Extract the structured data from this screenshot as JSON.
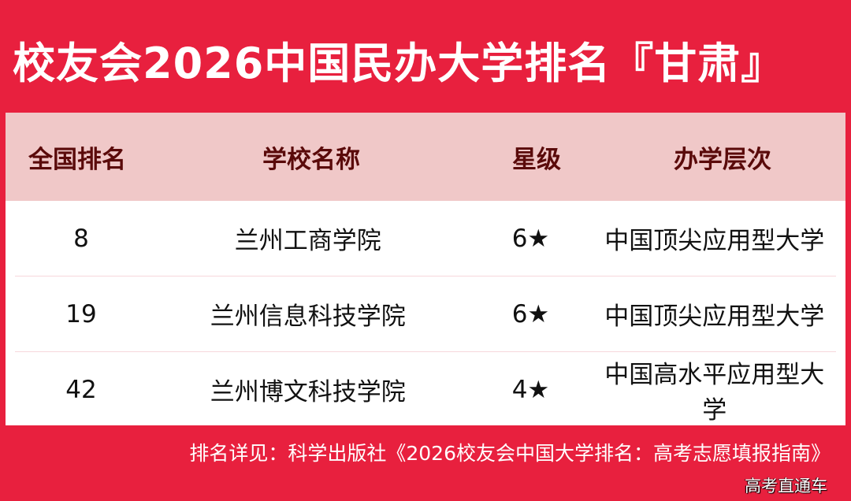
{
  "title": "校友会2026中国民办大学排名『甘肃』",
  "table": {
    "headers": [
      "全国排名",
      "学校名称",
      "星级",
      "办学层次"
    ],
    "rows": [
      {
        "rank": "8",
        "name": "兰州工商学院",
        "stars": "6★",
        "level": "中国顶尖应用型大学"
      },
      {
        "rank": "19",
        "name": "兰州信息科技学院",
        "stars": "6★",
        "level": "中国顶尖应用型大学"
      },
      {
        "rank": "42",
        "name": "兰州博文科技学院",
        "stars": "4★",
        "level": "中国高水平应用型大学"
      }
    ]
  },
  "footer": "排名详见：科学出版社《2026校友会中国大学排名：高考志愿填报指南》",
  "watermark": "高考直通车",
  "colors": {
    "background": "#E8203E",
    "header_bg": "#F0C8C8",
    "header_text": "#5a0a0a"
  }
}
